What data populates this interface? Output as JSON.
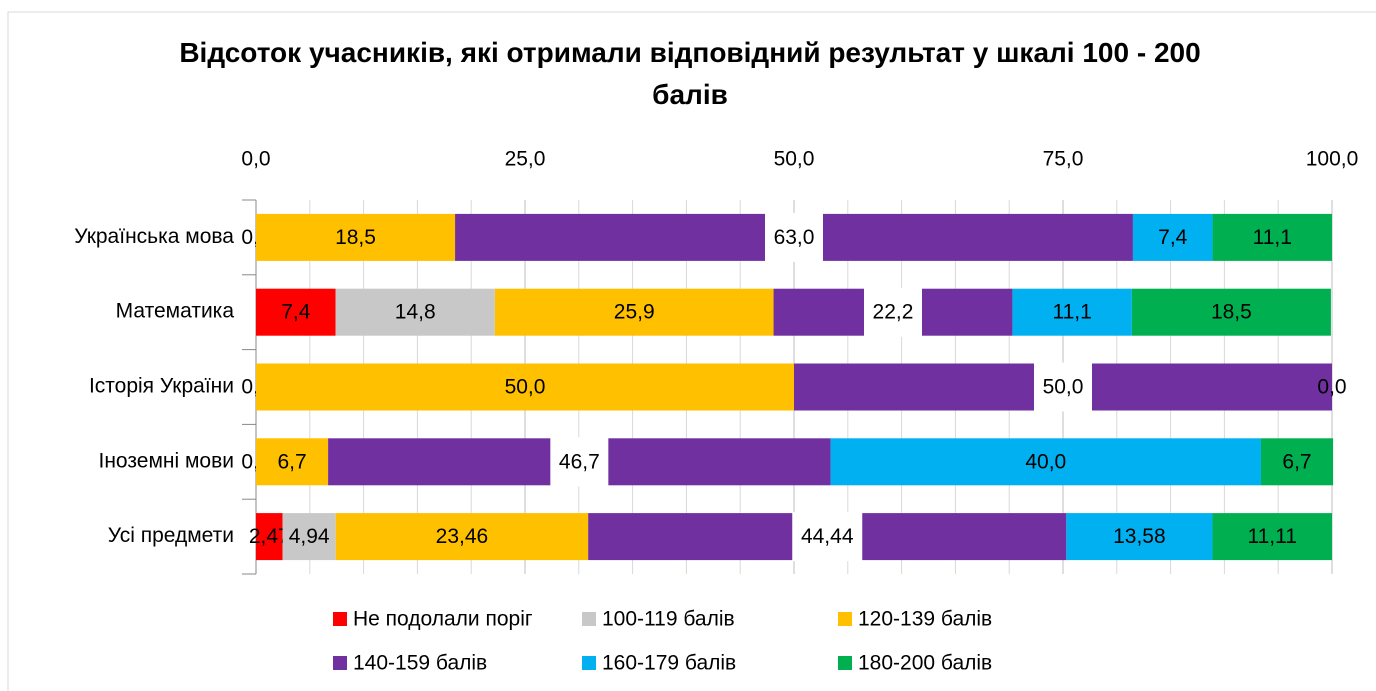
{
  "chart_data": {
    "type": "stacked_barh",
    "title": "Відсоток учасників, які отримали відповідний результат у шкалі 100 - 200 балів",
    "categories": [
      "Українська мова",
      "Математика",
      "Історія України",
      "Іноземні мови",
      "Усі предмети"
    ],
    "series": [
      {
        "name": "Не подолали поріг",
        "color": "#ff0000",
        "values": [
          0.0,
          7.4,
          0.0,
          0.0,
          2.47
        ],
        "value_labels": [
          "0,0",
          "7,4",
          "0,0",
          "0,0",
          "2,47"
        ]
      },
      {
        "name": "100-119 балів",
        "color": "#c8c8c8",
        "values": [
          null,
          14.8,
          null,
          null,
          4.94
        ],
        "value_labels": [
          null,
          "14,8",
          null,
          null,
          "4,94"
        ]
      },
      {
        "name": "120-139 балів",
        "color": "#ffc000",
        "values": [
          18.5,
          25.9,
          50.0,
          6.7,
          23.46
        ],
        "value_labels": [
          "18,5",
          "25,9",
          "50,0",
          "6,7",
          "23,46"
        ]
      },
      {
        "name": "140-159 балів",
        "color": "#7030a0",
        "values": [
          63.0,
          22.2,
          50.0,
          46.7,
          44.44
        ],
        "value_labels": [
          "63,0",
          "22,2",
          "50,0",
          "46,7",
          "44,44"
        ]
      },
      {
        "name": "160-179 балів",
        "color": "#00b0f0",
        "values": [
          7.4,
          11.1,
          null,
          40.0,
          13.58
        ],
        "value_labels": [
          "7,4",
          "11,1",
          null,
          "40,0",
          "13,58"
        ]
      },
      {
        "name": "180-200 балів",
        "color": "#00b050",
        "values": [
          11.1,
          18.5,
          0.0,
          6.7,
          11.11
        ],
        "value_labels": [
          "11,1",
          "18,5",
          "0,0",
          "6,7",
          "11,11"
        ]
      }
    ],
    "xlim": [
      0,
      100
    ],
    "xticks": [
      {
        "value": 0,
        "label": "0,0"
      },
      {
        "value": 25,
        "label": "25,0"
      },
      {
        "value": 50,
        "label": "50,0"
      },
      {
        "value": 75,
        "label": "75,0"
      },
      {
        "value": 100,
        "label": "100,0"
      }
    ],
    "minor_xticks": [
      5,
      10,
      15,
      20,
      30,
      35,
      40,
      45,
      55,
      60,
      65,
      70,
      80,
      85,
      90,
      95
    ],
    "grid": true,
    "legend": "bottom"
  }
}
